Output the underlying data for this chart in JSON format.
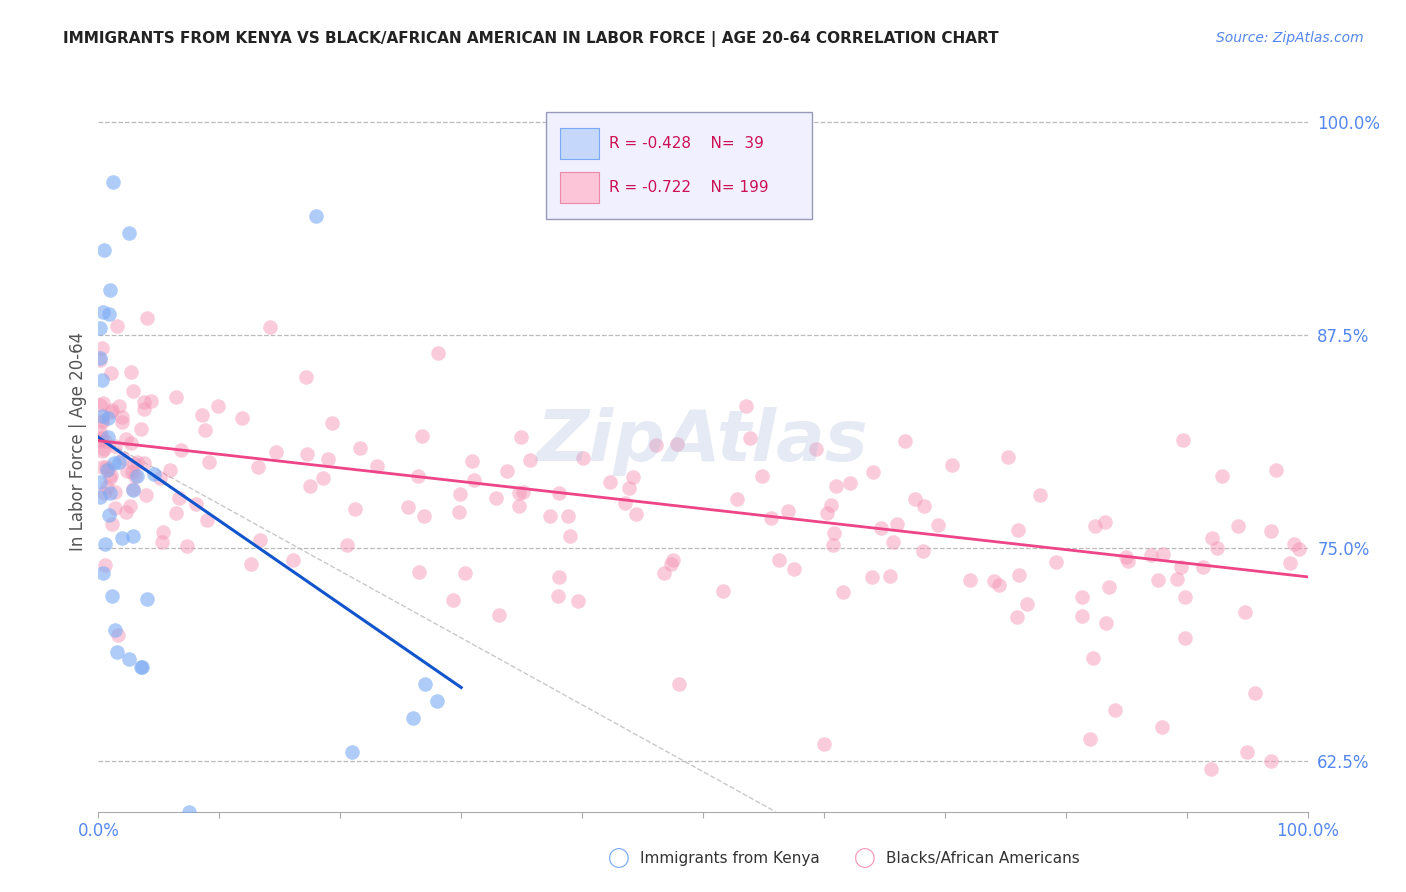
{
  "title": "IMMIGRANTS FROM KENYA VS BLACK/AFRICAN AMERICAN IN LABOR FORCE | AGE 20-64 CORRELATION CHART",
  "source": "Source: ZipAtlas.com",
  "ylabel": "In Labor Force | Age 20-64",
  "watermark": "ZipAtlas",
  "xlim": [
    0.0,
    1.0
  ],
  "ylim": [
    0.595,
    1.03
  ],
  "yticks": [
    0.625,
    0.75,
    0.875,
    1.0
  ],
  "ytick_labels": [
    "62.5%",
    "75.0%",
    "87.5%",
    "100.0%"
  ],
  "xtick_labels": [
    "0.0%",
    "100.0%"
  ],
  "kenya_R": -0.428,
  "kenya_N": 39,
  "black_R": -0.722,
  "black_N": 199,
  "kenya_color": "#7aaaf5",
  "black_color": "#f599b8",
  "kenya_line_color": "#1155cc",
  "black_line_color": "#ee4488",
  "tick_label_color": "#5588ee",
  "background_color": "#ffffff",
  "grid_color": "#bbbbbb",
  "diag_line_color": "#bbbbbb",
  "kenya_line_x": [
    0.0,
    0.3
  ],
  "kenya_line_y": [
    0.815,
    0.668
  ],
  "black_line_x": [
    0.0,
    1.0
  ],
  "black_line_y": [
    0.813,
    0.733
  ],
  "diag_line_x": [
    0.0,
    0.56
  ],
  "diag_line_y": [
    0.815,
    0.595
  ],
  "legend_R1": "R = -0.428",
  "legend_N1": "N =  39",
  "legend_R2": "R = -0.722",
  "legend_N2": "N = 199",
  "legend_label1": "Immigrants from Kenya",
  "legend_label2": "Blacks/African Americans"
}
